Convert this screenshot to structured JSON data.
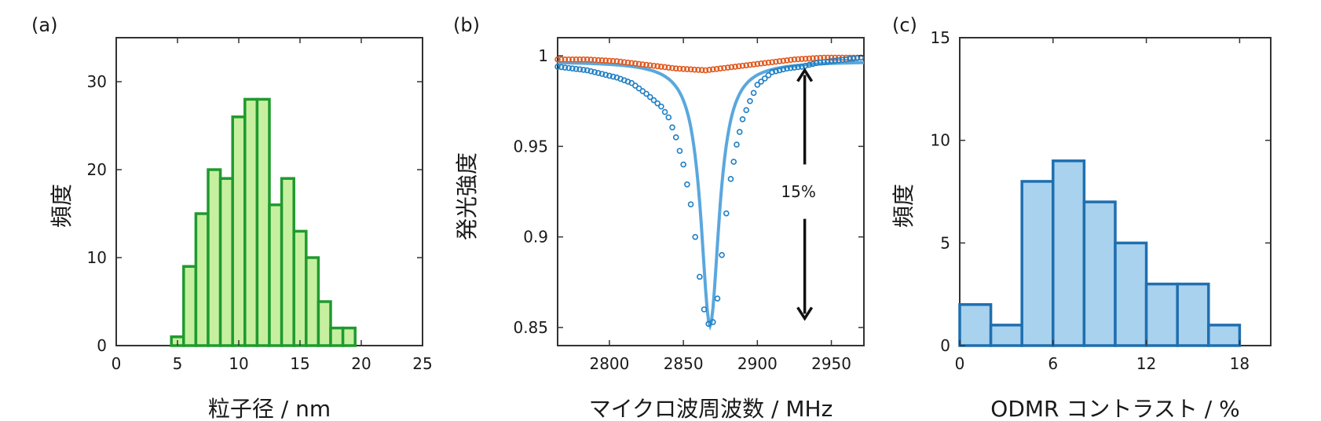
{
  "chart_data": [
    {
      "panel": "(a)",
      "type": "bar",
      "subtype": "histogram",
      "xlabel": "粒子径 / nm",
      "ylabel": "頻度",
      "xlim": [
        0,
        25
      ],
      "ylim": [
        0,
        35
      ],
      "xticks": [
        0,
        5,
        10,
        15,
        20,
        25
      ],
      "yticks": [
        0,
        10,
        20,
        30
      ],
      "bin_width": 1,
      "bin_starts": [
        4.5,
        5.5,
        6.5,
        7.5,
        8.5,
        9.5,
        10.5,
        11.5,
        12.5,
        13.5,
        14.5,
        15.5,
        16.5,
        17.5,
        18.5
      ],
      "values": [
        1,
        9,
        15,
        20,
        19,
        26,
        28,
        28,
        16,
        19,
        13,
        10,
        5,
        2,
        2
      ],
      "colors": {
        "fill": "#c6f0a0",
        "edge": "#1f9a2e"
      }
    },
    {
      "panel": "(b)",
      "type": "scatter",
      "xlabel": "マイクロ波周波数 / MHz",
      "ylabel": "発光強度",
      "xlim": [
        2765,
        2972
      ],
      "ylim": [
        0.84,
        1.01
      ],
      "xticks": [
        2800,
        2850,
        2900,
        2950
      ],
      "yticks": [
        0.85,
        0.9,
        0.95,
        1
      ],
      "ytick_labels": [
        "0.85",
        "0.9",
        "0.95",
        "1"
      ],
      "annotation": {
        "text": "15%",
        "arrow_x": 2932,
        "y_top": 0.992,
        "y_bottom": 0.855
      },
      "series": [
        {
          "marker": "circle",
          "color": "#e0571c",
          "x": [
            2765,
            2785,
            2805,
            2825,
            2845,
            2865,
            2885,
            2905,
            2925,
            2945,
            2970
          ],
          "y": [
            0.998,
            0.998,
            0.997,
            0.995,
            0.993,
            0.992,
            0.994,
            0.996,
            0.998,
            0.999,
            0.999
          ]
        },
        {
          "marker": "circle",
          "color": "#1f7fc4",
          "x": [
            2765,
            2775,
            2785,
            2795,
            2805,
            2815,
            2825,
            2835,
            2840,
            2845,
            2850,
            2855,
            2858,
            2861,
            2864,
            2867,
            2870,
            2873,
            2876,
            2879,
            2882,
            2886,
            2890,
            2895,
            2900,
            2910,
            2920,
            2930,
            2940,
            2950,
            2960,
            2970
          ],
          "y": [
            0.994,
            0.993,
            0.992,
            0.99,
            0.988,
            0.985,
            0.979,
            0.972,
            0.966,
            0.955,
            0.94,
            0.918,
            0.9,
            0.878,
            0.86,
            0.852,
            0.853,
            0.866,
            0.89,
            0.913,
            0.932,
            0.951,
            0.965,
            0.975,
            0.984,
            0.991,
            0.993,
            0.994,
            0.996,
            0.997,
            0.998,
            0.999
          ]
        },
        {
          "marker": "line",
          "color": "#5aa7dd",
          "fit": "lorentzian",
          "x": [
            2765,
            2800,
            2830,
            2845,
            2855,
            2860,
            2864,
            2868,
            2872,
            2876,
            2880,
            2890,
            2905,
            2930,
            2972
          ],
          "y": [
            0.994,
            0.989,
            0.975,
            0.955,
            0.925,
            0.895,
            0.865,
            0.851,
            0.862,
            0.893,
            0.925,
            0.962,
            0.981,
            0.992,
            0.997
          ]
        }
      ]
    },
    {
      "panel": "(c)",
      "type": "bar",
      "subtype": "histogram",
      "xlabel": "ODMR コントラスト / %",
      "ylabel": "頻度",
      "xlim": [
        0,
        20
      ],
      "ylim": [
        0,
        15
      ],
      "xticks": [
        0,
        6,
        12,
        18
      ],
      "yticks": [
        0,
        5,
        10,
        15
      ],
      "bin_width": 2,
      "bin_starts": [
        0,
        2,
        4,
        6,
        8,
        10,
        12,
        14,
        16
      ],
      "values": [
        2,
        1,
        8,
        9,
        7,
        5,
        3,
        3,
        1
      ],
      "colors": {
        "fill": "#a9d2ee",
        "edge": "#1f6fb0"
      }
    }
  ]
}
